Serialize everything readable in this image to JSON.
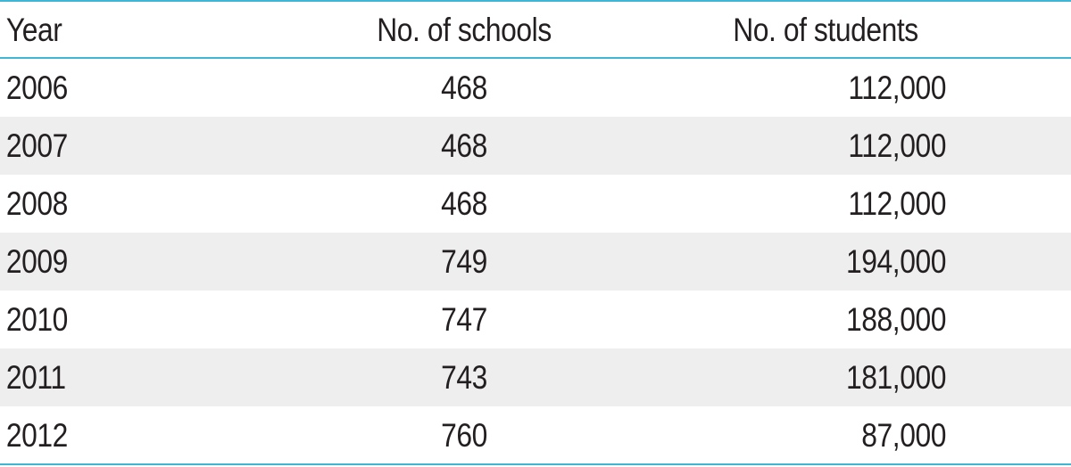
{
  "table": {
    "headers": {
      "year": "Year",
      "schools": "No. of schools",
      "students": "No. of students"
    },
    "rows": [
      {
        "year": "2006",
        "schools": "468",
        "students": "112,000"
      },
      {
        "year": "2007",
        "schools": "468",
        "students": "112,000"
      },
      {
        "year": "2008",
        "schools": "468",
        "students": "112,000"
      },
      {
        "year": "2009",
        "schools": "749",
        "students": "194,000"
      },
      {
        "year": "2010",
        "schools": "747",
        "students": "188,000"
      },
      {
        "year": "2011",
        "schools": "743",
        "students": "181,000"
      },
      {
        "year": "2012",
        "schools": "760",
        "students": "87,000"
      }
    ]
  },
  "colors": {
    "rule": "#3fb6d6",
    "shade": "#eeeeee",
    "text": "#231f20"
  }
}
